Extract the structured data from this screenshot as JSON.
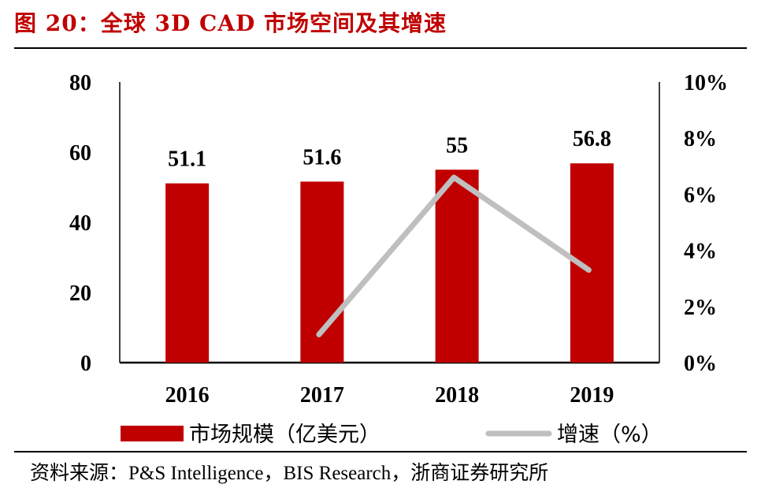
{
  "header": {
    "title": "图 20：全球 3D CAD 市场空间及其增速"
  },
  "footer": {
    "source": "资料来源：P&S Intelligence，BIS Research，浙商证券研究所"
  },
  "colors": {
    "bar": "#c00000",
    "line": "#bfbfbf",
    "title": "#c00000"
  },
  "chart_data": {
    "type": "bar",
    "title": "全球 3D CAD 市场空间及其增速",
    "categories": [
      "2016",
      "2017",
      "2018",
      "2019"
    ],
    "series": [
      {
        "name": "市场规模（亿美元）",
        "kind": "bar",
        "axis": "left",
        "values": [
          51.1,
          51.6,
          55,
          56.8
        ],
        "labels": [
          "51.1",
          "51.6",
          "55",
          "56.8"
        ]
      },
      {
        "name": "增速（%）",
        "kind": "line",
        "axis": "right",
        "values": [
          null,
          1.0,
          6.6,
          3.3
        ]
      }
    ],
    "y_left": {
      "min": 0,
      "max": 80,
      "ticks": [
        "0",
        "20",
        "40",
        "60",
        "80"
      ]
    },
    "y_right": {
      "min": 0,
      "max": 10,
      "ticks": [
        "0%",
        "2%",
        "4%",
        "6%",
        "8%",
        "10%"
      ]
    },
    "legend": {
      "position": "bottom",
      "items": [
        "市场规模（亿美元）",
        "增速（%）"
      ]
    },
    "grid": false
  }
}
